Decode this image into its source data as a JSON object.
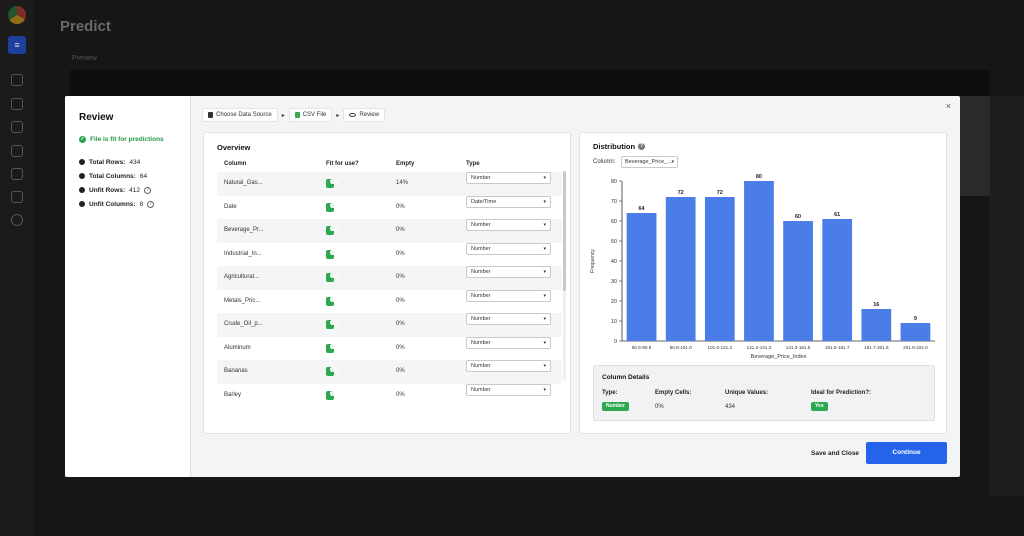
{
  "background": {
    "page_title": "Predict",
    "preview_label": "Preview"
  },
  "modal": {
    "title": "Review",
    "fit_message": "File is fit for predictions",
    "stats": [
      {
        "label": "Total Rows:",
        "value": "434",
        "help": false
      },
      {
        "label": "Total Columns:",
        "value": "64",
        "help": false
      },
      {
        "label": "Unfit Rows:",
        "value": "412",
        "help": true
      },
      {
        "label": "Unfit Columns:",
        "value": "8",
        "help": true
      }
    ],
    "close": "×",
    "breadcrumb": [
      "Choose Data Source",
      "CSV File",
      "Review"
    ],
    "overview": {
      "title": "Overview",
      "headers": [
        "Column",
        "Fit for use?",
        "Empty",
        "Type"
      ],
      "rows": [
        {
          "column": "Natural_Gas...",
          "fit": "Yes",
          "empty": "14%",
          "type": "Number"
        },
        {
          "column": "Date",
          "fit": "Yes",
          "empty": "0%",
          "type": "Date/Time"
        },
        {
          "column": "Beverage_Pr...",
          "fit": "Yes",
          "empty": "0%",
          "type": "Number"
        },
        {
          "column": "Industrial_In...",
          "fit": "Yes",
          "empty": "0%",
          "type": "Number"
        },
        {
          "column": "Agricultural...",
          "fit": "Yes",
          "empty": "0%",
          "type": "Number"
        },
        {
          "column": "Metals_Pric...",
          "fit": "Yes",
          "empty": "0%",
          "type": "Number"
        },
        {
          "column": "Crude_Oil_p...",
          "fit": "Yes",
          "empty": "0%",
          "type": "Number"
        },
        {
          "column": "Aluminum",
          "fit": "Yes",
          "empty": "0%",
          "type": "Number"
        },
        {
          "column": "Bananas",
          "fit": "Yes",
          "empty": "0%",
          "type": "Number"
        },
        {
          "column": "Barley",
          "fit": "Yes",
          "empty": "0%",
          "type": "Number"
        }
      ]
    },
    "distribution": {
      "title": "Distribution",
      "column_label": "Column:",
      "column_value": "Beverage_Price_..."
    },
    "column_details": {
      "title": "Column Details",
      "type_label": "Type:",
      "type_value": "Number",
      "empty_label": "Empty Cells:",
      "empty_value": "0%",
      "unique_label": "Unique Values:",
      "unique_value": "434",
      "ideal_label": "Ideal for Prediction?:",
      "ideal_value": "Yes"
    },
    "save_close": "Save and Close",
    "continue": "Continue"
  },
  "colors": {
    "bar": "#4a7de8",
    "success": "#2ea84f",
    "primary": "#2563eb"
  },
  "chart_data": {
    "type": "bar",
    "categories": [
      "60.6-80.8",
      "80.8-101.0",
      "101.0-121.2",
      "121.2-141.3",
      "141.3-161.5",
      "161.5-181.7",
      "181.7-201.8",
      "201.8-222.0"
    ],
    "values": [
      64,
      72,
      72,
      80,
      60,
      61,
      16,
      9
    ],
    "xlabel": "Beverage_Price_Index",
    "ylabel": "Frequency",
    "ylim": [
      0,
      80
    ],
    "yticks": [
      0,
      10,
      20,
      30,
      40,
      50,
      60,
      70,
      80
    ],
    "data_labels": true,
    "grid": false
  }
}
